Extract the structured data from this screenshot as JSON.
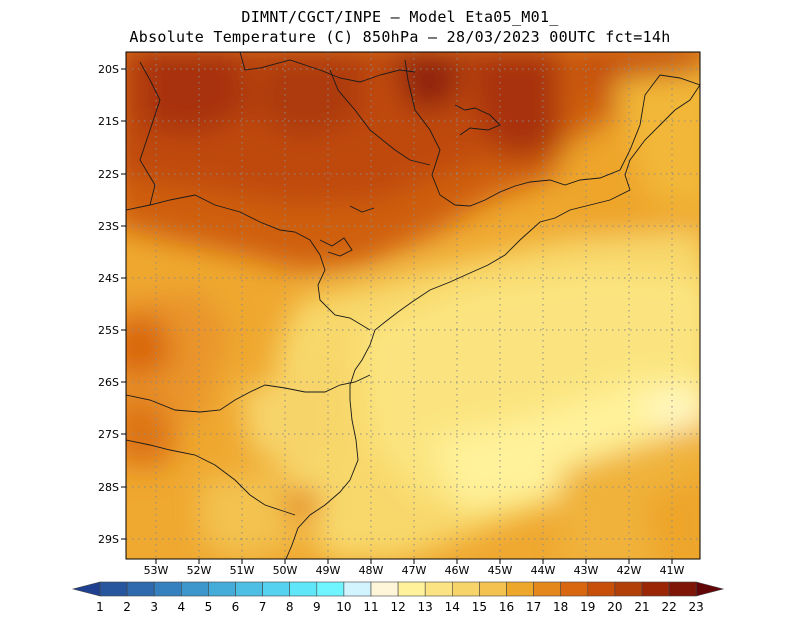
{
  "header": {
    "line1": "DIMNT/CGCT/INPE –  Model Eta05_M01_",
    "line2": "Absolute Temperature (C) 850hPa –  28/03/2023 00UTC fct=14h"
  },
  "map": {
    "lat_labels": [
      "20S",
      "21S",
      "22S",
      "23S",
      "24S",
      "25S",
      "26S",
      "27S",
      "28S",
      "29S"
    ],
    "lon_labels": [
      "53W",
      "52W",
      "51W",
      "50W",
      "49W",
      "48W",
      "47W",
      "46W",
      "45W",
      "44W",
      "43W",
      "42W",
      "41W"
    ]
  },
  "colorbar": {
    "labels": [
      "1",
      "2",
      "3",
      "4",
      "5",
      "6",
      "7",
      "8",
      "9",
      "10",
      "11",
      "12",
      "13",
      "14",
      "15",
      "16",
      "17",
      "18",
      "19",
      "20",
      "21",
      "22",
      "23"
    ],
    "colors": [
      "#1f3f8f",
      "#27569f",
      "#2e6aad",
      "#3580be",
      "#3d97cd",
      "#45abd9",
      "#4dbfe4",
      "#55d2ef",
      "#5fe6f8",
      "#6ff5ff",
      "#d2f4ff",
      "#fff5d8",
      "#fff29a",
      "#fbe383",
      "#f7d46a",
      "#f3c24f",
      "#eda72a",
      "#e5881c",
      "#d9670f",
      "#c84f0a",
      "#b33f08",
      "#9a2606",
      "#7f1506",
      "#620506"
    ]
  }
}
